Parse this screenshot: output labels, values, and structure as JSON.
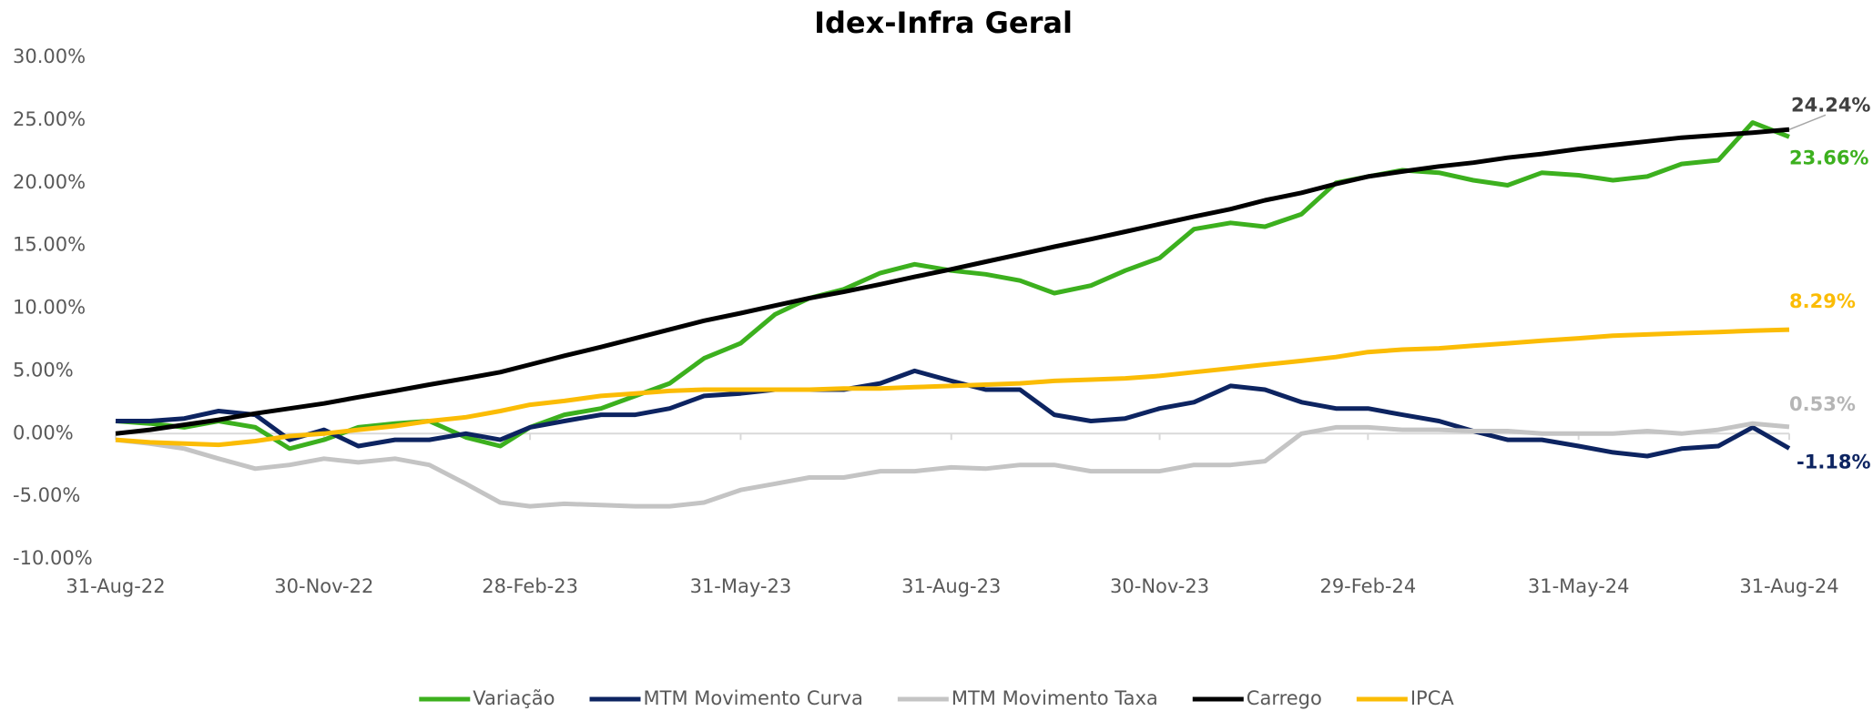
{
  "chart_data": {
    "type": "line",
    "title": "Idex-Infra Geral",
    "x": [
      "2022-08-31",
      "2022-09-15",
      "2022-09-30",
      "2022-10-15",
      "2022-10-31",
      "2022-11-15",
      "2022-11-30",
      "2022-12-15",
      "2022-12-31",
      "2023-01-15",
      "2023-01-31",
      "2023-02-15",
      "2023-02-28",
      "2023-03-15",
      "2023-03-31",
      "2023-04-15",
      "2023-04-30",
      "2023-05-15",
      "2023-05-31",
      "2023-06-15",
      "2023-06-30",
      "2023-07-15",
      "2023-07-31",
      "2023-08-15",
      "2023-08-31",
      "2023-09-15",
      "2023-09-30",
      "2023-10-15",
      "2023-10-31",
      "2023-11-15",
      "2023-11-30",
      "2023-12-15",
      "2023-12-31",
      "2024-01-15",
      "2024-01-31",
      "2024-02-15",
      "2024-02-29",
      "2024-03-15",
      "2024-03-31",
      "2024-04-15",
      "2024-04-30",
      "2024-05-15",
      "2024-05-31",
      "2024-06-15",
      "2024-06-30",
      "2024-07-15",
      "2024-07-31",
      "2024-08-15",
      "2024-08-31"
    ],
    "series": [
      {
        "name": "Variação",
        "color": "#3cb01e",
        "end_label": "23.66%",
        "values": [
          1.0,
          0.8,
          0.5,
          1.0,
          0.5,
          -1.2,
          -0.5,
          0.5,
          0.8,
          1.0,
          -0.3,
          -1.0,
          0.5,
          1.5,
          2.0,
          3.0,
          4.0,
          6.0,
          7.2,
          9.5,
          10.8,
          11.5,
          12.8,
          13.5,
          13.0,
          12.7,
          12.2,
          11.2,
          11.8,
          13.0,
          14.0,
          16.3,
          16.8,
          16.5,
          17.5,
          20.0,
          20.5,
          21.0,
          20.8,
          20.2,
          19.8,
          20.8,
          20.6,
          20.2,
          20.5,
          21.5,
          21.8,
          24.8,
          23.66
        ]
      },
      {
        "name": "MTM Movimento Curva",
        "color": "#0d2461",
        "end_label": "-1.18%",
        "values": [
          1.0,
          1.0,
          1.2,
          1.8,
          1.5,
          -0.5,
          0.3,
          -1.0,
          -0.5,
          -0.5,
          0.0,
          -0.5,
          0.5,
          1.0,
          1.5,
          1.5,
          2.0,
          3.0,
          3.2,
          3.5,
          3.5,
          3.5,
          4.0,
          5.0,
          4.2,
          3.5,
          3.5,
          1.5,
          1.0,
          1.2,
          2.0,
          2.5,
          3.8,
          3.5,
          2.5,
          2.0,
          2.0,
          1.5,
          1.0,
          0.2,
          -0.5,
          -0.5,
          -1.0,
          -1.5,
          -1.8,
          -1.2,
          -1.0,
          0.5,
          -1.18
        ]
      },
      {
        "name": "MTM Movimento Taxa",
        "color": "#c4c4c4",
        "end_label": "0.53%",
        "values": [
          -0.5,
          -0.8,
          -1.2,
          -2.0,
          -2.8,
          -2.5,
          -2.0,
          -2.3,
          -2.0,
          -2.5,
          -4.0,
          -5.5,
          -5.8,
          -5.6,
          -5.7,
          -5.8,
          -5.8,
          -5.5,
          -4.5,
          -4.0,
          -3.5,
          -3.5,
          -3.0,
          -3.0,
          -2.7,
          -2.8,
          -2.5,
          -2.5,
          -3.0,
          -3.0,
          -3.0,
          -2.5,
          -2.5,
          -2.2,
          0.0,
          0.5,
          0.5,
          0.3,
          0.3,
          0.2,
          0.2,
          0.0,
          0.0,
          0.0,
          0.2,
          0.0,
          0.3,
          0.8,
          0.53
        ]
      },
      {
        "name": "Carrego",
        "color": "#000000",
        "end_label": "24.24%",
        "values": [
          0,
          0.3,
          0.7,
          1.1,
          1.6,
          2.0,
          2.4,
          2.9,
          3.4,
          3.9,
          4.4,
          4.9,
          5.5,
          6.2,
          6.9,
          7.6,
          8.3,
          9.0,
          9.6,
          10.2,
          10.8,
          11.3,
          11.9,
          12.5,
          13.1,
          13.7,
          14.3,
          14.9,
          15.5,
          16.1,
          16.7,
          17.3,
          17.9,
          18.6,
          19.2,
          19.9,
          20.5,
          20.9,
          21.3,
          21.6,
          22.0,
          22.3,
          22.7,
          23.0,
          23.3,
          23.6,
          23.8,
          24.0,
          24.24
        ]
      },
      {
        "name": "IPCA",
        "color": "#fbbc05",
        "end_label": "8.29%",
        "values": [
          -0.5,
          -0.7,
          -0.8,
          -0.9,
          -0.6,
          -0.2,
          0.0,
          0.3,
          0.6,
          1.0,
          1.3,
          1.8,
          2.3,
          2.6,
          3.0,
          3.2,
          3.4,
          3.5,
          3.5,
          3.5,
          3.5,
          3.6,
          3.6,
          3.7,
          3.8,
          3.9,
          4.0,
          4.2,
          4.3,
          4.4,
          4.6,
          4.9,
          5.2,
          5.5,
          5.8,
          6.1,
          6.5,
          6.7,
          6.8,
          7.0,
          7.2,
          7.4,
          7.6,
          7.8,
          7.9,
          8.0,
          8.1,
          8.2,
          8.29
        ]
      }
    ],
    "xlim": [
      "2022-08-31",
      "2024-08-31"
    ],
    "xticks": [
      {
        "value": "2022-08-31",
        "label": "31-Aug-22"
      },
      {
        "value": "2022-11-30",
        "label": "30-Nov-22"
      },
      {
        "value": "2023-02-28",
        "label": "28-Feb-23"
      },
      {
        "value": "2023-05-31",
        "label": "31-May-23"
      },
      {
        "value": "2023-08-31",
        "label": "31-Aug-23"
      },
      {
        "value": "2023-11-30",
        "label": "30-Nov-23"
      },
      {
        "value": "2024-02-29",
        "label": "29-Feb-24"
      },
      {
        "value": "2024-05-31",
        "label": "31-May-24"
      },
      {
        "value": "2024-08-31",
        "label": "31-Aug-24"
      }
    ],
    "ylim": [
      -10,
      30
    ],
    "yticks": [
      {
        "value": -10,
        "label": "-10.00%"
      },
      {
        "value": -5,
        "label": "-5.00%"
      },
      {
        "value": 0,
        "label": "0.00%"
      },
      {
        "value": 5,
        "label": "5.00%"
      },
      {
        "value": 10,
        "label": "10.00%"
      },
      {
        "value": 15,
        "label": "15.00%"
      },
      {
        "value": 20,
        "label": "20.00%"
      },
      {
        "value": 25,
        "label": "25.00%"
      },
      {
        "value": 30,
        "label": "30.00%"
      }
    ],
    "grid": false,
    "legend": "bottom"
  }
}
